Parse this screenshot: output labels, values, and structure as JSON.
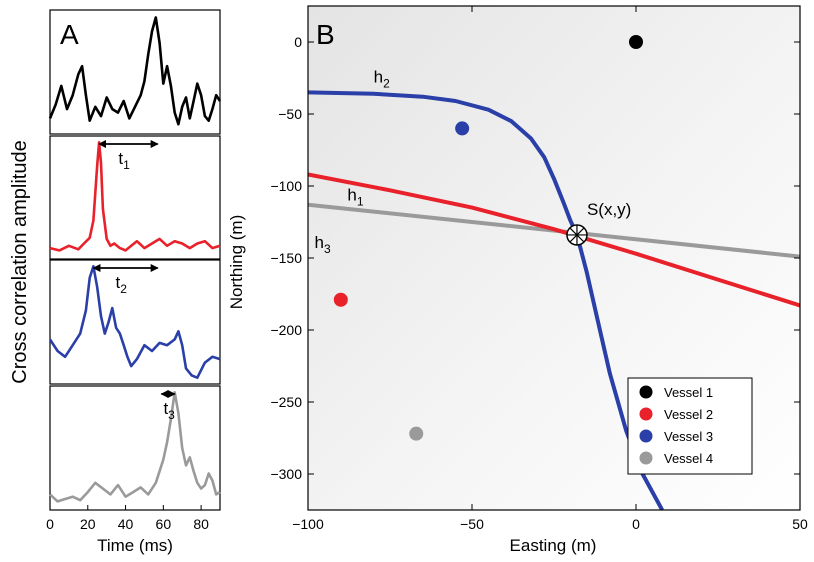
{
  "chart_data": [
    {
      "panel": "A",
      "type": "line",
      "xlabel": "Time (ms)",
      "ylabel": "Cross correlation amplitude",
      "xlim": [
        0,
        90
      ],
      "x_ticks": [
        "0",
        "20",
        "40",
        "60",
        "80"
      ],
      "series": [
        {
          "color": "#000000",
          "x": [
            0,
            3,
            6,
            9,
            12,
            15,
            17,
            19,
            21,
            24,
            27,
            30,
            33,
            36,
            39,
            42,
            45,
            48,
            50,
            52,
            54,
            56,
            58,
            60,
            62,
            64,
            66,
            68,
            70,
            72,
            74,
            76,
            78,
            80,
            82,
            84,
            86,
            88,
            90
          ],
          "y": [
            0.1,
            0.22,
            0.38,
            0.18,
            0.3,
            0.48,
            0.55,
            0.3,
            0.08,
            0.2,
            0.12,
            0.28,
            0.18,
            0.15,
            0.25,
            0.1,
            0.2,
            0.3,
            0.42,
            0.65,
            0.85,
            0.97,
            0.75,
            0.4,
            0.55,
            0.38,
            0.15,
            0.05,
            0.2,
            0.28,
            0.1,
            0.25,
            0.4,
            0.3,
            0.12,
            0.08,
            0.18,
            0.3,
            0.25
          ]
        },
        {
          "color": "#e8212a",
          "x": [
            0,
            5,
            10,
            15,
            18,
            21,
            23,
            25,
            26,
            27,
            28,
            30,
            32,
            34,
            37,
            40,
            43,
            46,
            50,
            54,
            58,
            62,
            66,
            70,
            74,
            78,
            82,
            86,
            90
          ],
          "y": [
            0.06,
            0.04,
            0.08,
            0.05,
            0.1,
            0.15,
            0.3,
            0.78,
            0.98,
            0.8,
            0.4,
            0.14,
            0.08,
            0.1,
            0.06,
            0.04,
            0.08,
            0.12,
            0.06,
            0.1,
            0.14,
            0.08,
            0.12,
            0.1,
            0.06,
            0.1,
            0.12,
            0.06,
            0.08
          ]
        },
        {
          "color": "#2b3fa8",
          "x": [
            0,
            4,
            8,
            12,
            16,
            19,
            21,
            23,
            25,
            27,
            29,
            31,
            33,
            35,
            37,
            39,
            41,
            43,
            46,
            50,
            54,
            58,
            62,
            66,
            68,
            70,
            72,
            75,
            78,
            82,
            86,
            90
          ],
          "y": [
            0.35,
            0.25,
            0.2,
            0.3,
            0.4,
            0.6,
            0.88,
            0.98,
            0.8,
            0.55,
            0.4,
            0.5,
            0.62,
            0.45,
            0.4,
            0.3,
            0.2,
            0.12,
            0.18,
            0.3,
            0.25,
            0.32,
            0.3,
            0.35,
            0.42,
            0.3,
            0.1,
            0.04,
            0.02,
            0.15,
            0.2,
            0.18
          ]
        },
        {
          "color": "#9a9a9a",
          "x": [
            0,
            4,
            8,
            12,
            16,
            20,
            24,
            28,
            32,
            36,
            40,
            44,
            48,
            52,
            56,
            58,
            60,
            62,
            64,
            66,
            68,
            70,
            72,
            74,
            76,
            78,
            80,
            82,
            84,
            86,
            88,
            90
          ],
          "y": [
            0.1,
            0.04,
            0.06,
            0.08,
            0.05,
            0.12,
            0.2,
            0.15,
            0.1,
            0.18,
            0.08,
            0.12,
            0.16,
            0.1,
            0.2,
            0.3,
            0.4,
            0.55,
            0.75,
            0.98,
            0.8,
            0.5,
            0.35,
            0.42,
            0.3,
            0.2,
            0.15,
            0.18,
            0.28,
            0.22,
            0.1,
            0.12
          ]
        }
      ],
      "annotations": [
        {
          "label": "t1",
          "main": "t",
          "sub": "1",
          "panel_row": 1,
          "x_start": 26,
          "x_end": 57
        },
        {
          "label": "t2",
          "main": "t",
          "sub": "2",
          "panel_row": 2,
          "x_start": 23,
          "x_end": 57
        },
        {
          "label": "t3",
          "main": "t",
          "sub": "3",
          "panel_row": 3,
          "x_start": 59,
          "x_end": 66
        }
      ]
    },
    {
      "panel": "B",
      "type": "scatter",
      "xlabel": "Easting (m)",
      "ylabel": "Northing (m)",
      "xlim": [
        -100,
        50
      ],
      "ylim": [
        -325,
        25
      ],
      "x_ticks": [
        -100,
        -50,
        0,
        50
      ],
      "y_ticks": [
        0,
        -50,
        -100,
        -150,
        -200,
        -250,
        -300
      ],
      "points": [
        {
          "name": "Vessel 1",
          "color": "#000000",
          "x": 0,
          "y": 0
        },
        {
          "name": "Vessel 2",
          "color": "#e8212a",
          "x": -90,
          "y": -179
        },
        {
          "name": "Vessel 3",
          "color": "#2b3fa8",
          "x": -53,
          "y": -60
        },
        {
          "name": "Vessel 4",
          "color": "#9a9a9a",
          "x": -67,
          "y": -272
        }
      ],
      "curves": [
        {
          "label": "h2",
          "main": "h",
          "sub": "2",
          "color": "#2b3fa8",
          "x": [
            -100,
            -80,
            -65,
            -55,
            -45,
            -38,
            -32,
            -28,
            -25,
            -22,
            -20,
            -18,
            -15,
            -12,
            -8,
            -3,
            2,
            8
          ],
          "y": [
            -35,
            -36,
            -38,
            -41,
            -47,
            -55,
            -67,
            -80,
            -95,
            -112,
            -124,
            -134,
            -160,
            -190,
            -230,
            -270,
            -300,
            -325
          ]
        },
        {
          "label": "h1",
          "main": "h",
          "sub": "1",
          "color": "#e8212a",
          "x": [
            -100,
            -75,
            -50,
            -25,
            0,
            25,
            50
          ],
          "y": [
            -92,
            -103,
            -115,
            -130,
            -147,
            -165,
            -183
          ]
        },
        {
          "label": "h3",
          "main": "h",
          "sub": "3",
          "color": "#9a9a9a",
          "x": [
            -100,
            -50,
            0,
            50
          ],
          "y": [
            -113,
            -125,
            -137,
            -149
          ]
        }
      ],
      "intersection": {
        "label": "S(x,y)",
        "x": -18,
        "y": -134
      },
      "legend_placement": "bottom-right",
      "legend": [
        "Vessel 1",
        "Vessel 2",
        "Vessel 3",
        "Vessel 4"
      ]
    }
  ],
  "panel_letters": [
    "A",
    "B"
  ]
}
